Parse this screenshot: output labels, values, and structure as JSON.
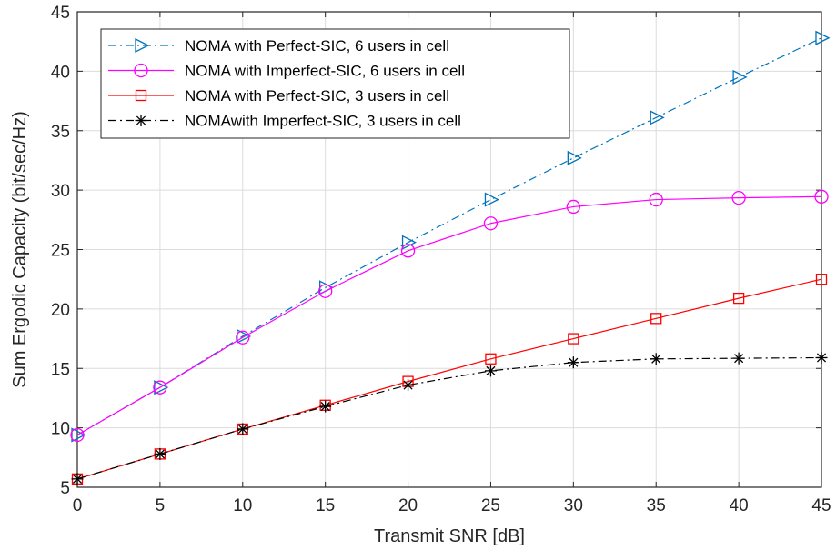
{
  "chart_data": {
    "type": "line",
    "xlabel": "Transmit SNR [dB]",
    "ylabel": "Sum Ergodic Capacity (bit/sec/Hz)",
    "xlim": [
      0,
      45
    ],
    "ylim": [
      5,
      45
    ],
    "xticks": [
      0,
      5,
      10,
      15,
      20,
      25,
      30,
      35,
      40,
      45
    ],
    "yticks": [
      5,
      10,
      15,
      20,
      25,
      30,
      35,
      40,
      45
    ],
    "grid": true,
    "legend_position": "top-left",
    "x": [
      0,
      5,
      10,
      15,
      20,
      25,
      30,
      35,
      40,
      45
    ],
    "series": [
      {
        "name": "NOMA with Perfect-SIC, 6 users in cell",
        "values": [
          9.4,
          13.4,
          17.7,
          21.8,
          25.6,
          29.2,
          32.7,
          36.1,
          39.5,
          42.8
        ],
        "color": "#0072BD",
        "dash": "dashdot",
        "marker": "triangle-right"
      },
      {
        "name": "NOMA with Imperfect-SIC, 6 users in cell",
        "values": [
          9.4,
          13.4,
          17.6,
          21.5,
          24.9,
          27.2,
          28.6,
          29.2,
          29.35,
          29.45
        ],
        "color": "#FF00FF",
        "dash": "solid",
        "marker": "circle"
      },
      {
        "name": "NOMA with Perfect-SIC, 3 users in cell",
        "values": [
          5.7,
          7.8,
          9.9,
          11.9,
          13.9,
          15.8,
          17.5,
          19.2,
          20.9,
          22.5
        ],
        "color": "#FF0000",
        "dash": "solid",
        "marker": "square"
      },
      {
        "name": "NOMAwith Imperfect-SIC, 3 users in cell",
        "values": [
          5.7,
          7.8,
          9.9,
          11.8,
          13.6,
          14.8,
          15.5,
          15.8,
          15.85,
          15.9
        ],
        "color": "#000000",
        "dash": "dashdot",
        "marker": "asterisk"
      }
    ]
  }
}
